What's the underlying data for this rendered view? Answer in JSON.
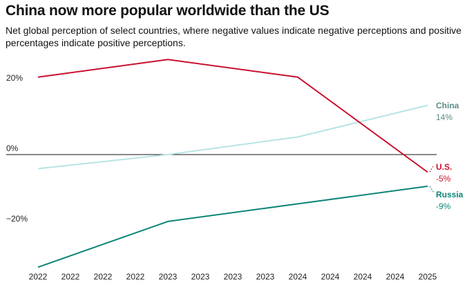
{
  "chart_data": {
    "type": "line",
    "title": "China now more popular worldwide than the US",
    "subtitle": "Net global perception of select countries, where negative values indicate negative perceptions and positive percentages indicate positive perceptions.",
    "x_tick_labels": [
      "2022",
      "2022",
      "2022",
      "2022",
      "2023",
      "2023",
      "2023",
      "2023",
      "2024",
      "2024",
      "2024",
      "2024",
      "2025"
    ],
    "x": [
      0,
      4,
      8,
      12
    ],
    "y_ticks": [
      {
        "value": 20,
        "label": "20%"
      },
      {
        "value": 0,
        "label": "0%"
      },
      {
        "value": -20,
        "label": "−20%"
      }
    ],
    "ylim": [
      -33,
      26
    ],
    "series": [
      {
        "name": "China",
        "values": [
          -4,
          0,
          5,
          14
        ],
        "end_label": "14%",
        "color": "#b7e4e6",
        "label_color": "#5b8c86"
      },
      {
        "name": "U.S.",
        "values": [
          22,
          27,
          22,
          -5
        ],
        "end_label": "-5%",
        "color": "#c8102e",
        "label_color": "#c8102e"
      },
      {
        "name": "Russia",
        "values": [
          -32,
          -19,
          -14,
          -9
        ],
        "end_label": "-9%",
        "color": "#0b8578",
        "label_color": "#0b8578"
      }
    ]
  }
}
